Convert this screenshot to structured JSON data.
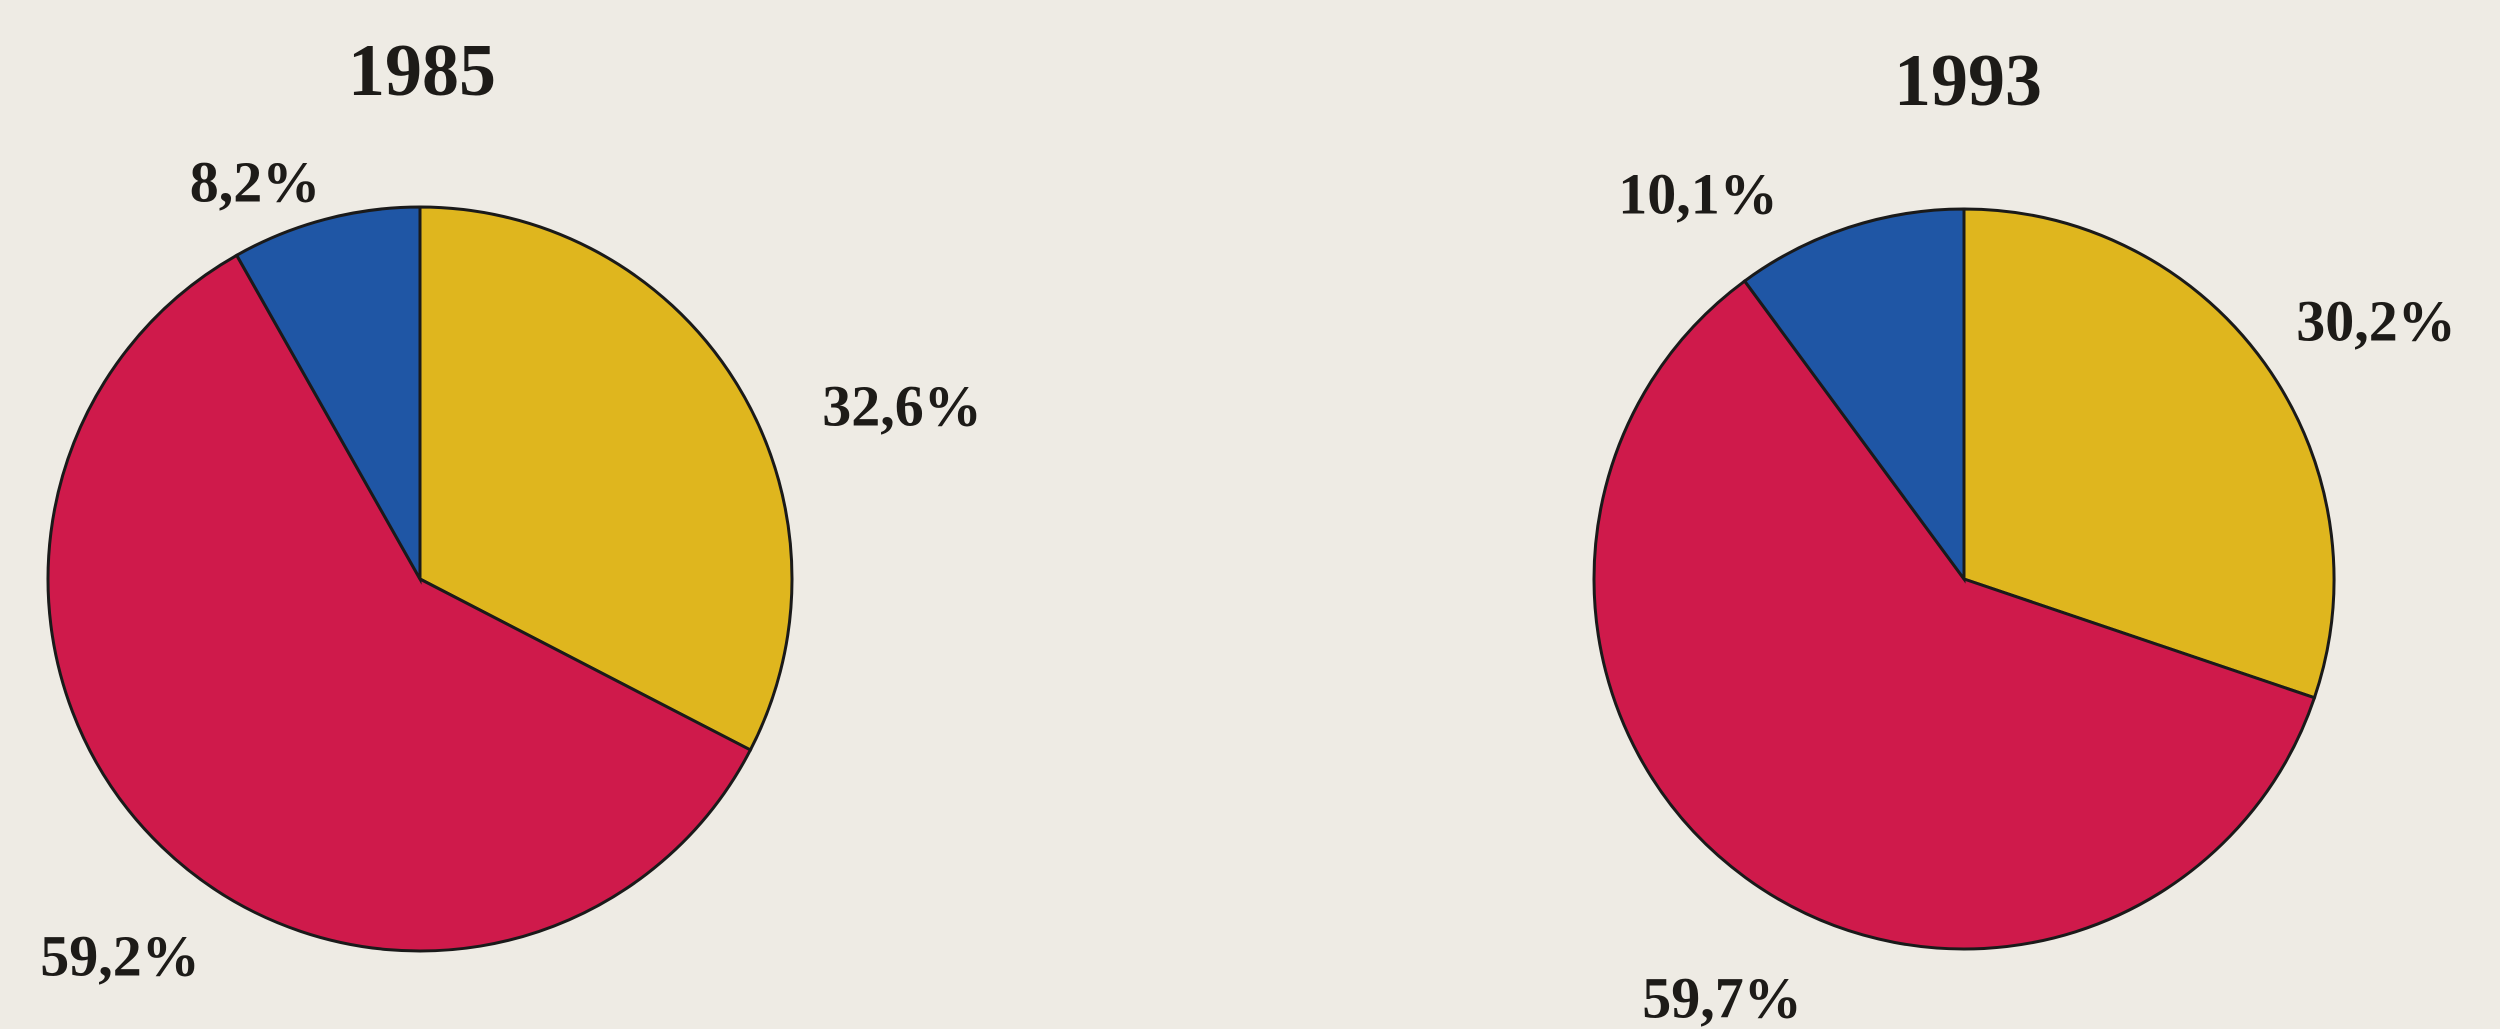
{
  "chart_data": [
    {
      "type": "pie",
      "title": "1985",
      "values": [
        32.6,
        59.2,
        8.2
      ],
      "value_labels": [
        "32,6%",
        "59,2%",
        "8,2%"
      ],
      "colors": [
        "#dfb61e",
        "#cf1a4b",
        "#1f56a5"
      ]
    },
    {
      "type": "pie",
      "title": "1993",
      "values": [
        30.2,
        59.7,
        10.1
      ],
      "value_labels": [
        "30,2%",
        "59,7%",
        "10,1%"
      ],
      "colors": [
        "#dfb61e",
        "#cf1a4b",
        "#1f56a5"
      ]
    }
  ]
}
